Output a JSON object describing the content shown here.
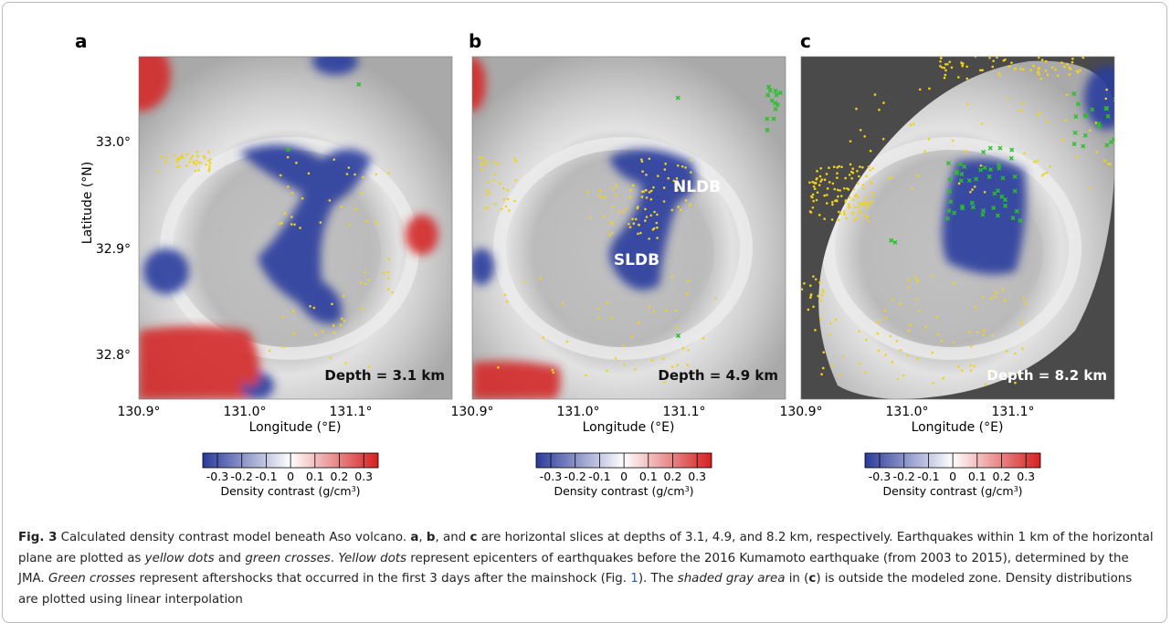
{
  "panels": [
    {
      "letter": "a",
      "depth": "Depth = 3.1 km",
      "x_ticks": [
        "130.9°",
        "131.0°",
        "131.1°"
      ],
      "x_label": "Longitude (°E)",
      "colorbar": {
        "ticks": [
          "-0.3",
          "-0.2",
          "-0.1",
          "0",
          "0.1",
          "0.2",
          "0.3"
        ],
        "label": [
          "Density contrast (g/cm",
          "3",
          ")"
        ]
      }
    },
    {
      "letter": "b",
      "depth": "Depth = 4.9 km",
      "x_ticks": [
        "130.9°",
        "131.0°",
        "131.1°"
      ],
      "x_label": "Longitude (°E)",
      "annotations": [
        "NLDB",
        "SLDB"
      ],
      "colorbar": {
        "ticks": [
          "-0.3",
          "-0.2",
          "-0.1",
          "0",
          "0.1",
          "0.2",
          "0.3"
        ],
        "label": [
          "Density contrast (g/cm",
          "3",
          ")"
        ]
      }
    },
    {
      "letter": "c",
      "depth": "Depth = 8.2 km",
      "x_ticks": [
        "130.9°",
        "131.0°",
        "131.1°"
      ],
      "x_label": "Longitude (°E)",
      "colorbar": {
        "ticks": [
          "-0.3",
          "-0.2",
          "-0.1",
          "0",
          "0.1",
          "0.2",
          "0.3"
        ],
        "label": [
          "Density contrast (g/cm",
          "3",
          ")"
        ]
      }
    }
  ],
  "y_axis": {
    "label": "Latitude (°N)",
    "ticks": [
      "33.0°",
      "32.9°",
      "32.8°"
    ]
  },
  "caption": [
    "Fig. 3",
    "  Calculated density contrast model beneath Aso volcano. ",
    "a",
    ", ",
    "b",
    ", and ",
    "c",
    " are horizontal slices at depths of 3.1, 4.9, and 8.2 km, respectively. Earthquakes within 1 km of the horizontal plane are plotted as ",
    "yellow dots",
    " and ",
    "green crosses",
    ". ",
    "Yellow dots",
    " represent epicenters of earthquakes before the 2016 Kumamoto earthquake (from 2003 to 2015), determined by the JMA. ",
    "Green crosses",
    " represent aftershocks that occurred in the first 3 days after the mainshock (Fig. ",
    "1",
    "). The ",
    "shaded gray area",
    " in (",
    "c",
    ") is outside the modeled zone. Density distributions are plotted using linear interpolation"
  ]
}
